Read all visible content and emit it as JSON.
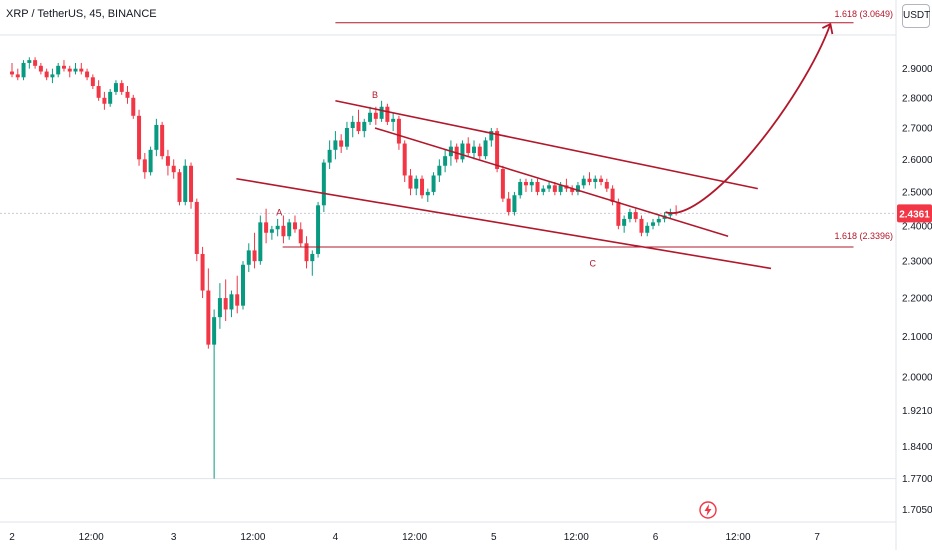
{
  "header": {
    "symbol_text": "XRP / TetherUS, 45, BINANCE",
    "currency": "USDT"
  },
  "price_tag": {
    "value": "2.4361",
    "color": "#f23645"
  },
  "colors": {
    "up": "#089981",
    "down": "#f23645",
    "drawing": "#b2182b"
  },
  "chart_data": {
    "type": "candlestick",
    "y_axis": {
      "ylim": [
        1.68,
        3.15
      ],
      "ticks": [
        "2.9000",
        "2.8000",
        "2.7000",
        "2.6000",
        "2.5000",
        "2.4000",
        "2.3000",
        "2.2000",
        "2.1000",
        "2.0000",
        "1.9210",
        "1.8400",
        "1.7700",
        "1.7050"
      ]
    },
    "x_axis": {
      "range": [
        0,
        280
      ],
      "ticks": [
        {
          "x": 0,
          "label": "2"
        },
        {
          "x": 24,
          "label": "12:00"
        },
        {
          "x": 49,
          "label": "3"
        },
        {
          "x": 73,
          "label": "12:00"
        },
        {
          "x": 98,
          "label": "4"
        },
        {
          "x": 122,
          "label": "12:00"
        },
        {
          "x": 146,
          "label": "5"
        },
        {
          "x": 171,
          "label": "12:00"
        },
        {
          "x": 195,
          "label": "6"
        },
        {
          "x": 220,
          "label": "12:00"
        },
        {
          "x": 244,
          "label": "7"
        }
      ]
    },
    "candles": [
      [
        2.89,
        2.92,
        2.87,
        2.88
      ],
      [
        2.88,
        2.9,
        2.86,
        2.87
      ],
      [
        2.87,
        2.93,
        2.86,
        2.92
      ],
      [
        2.92,
        2.94,
        2.9,
        2.93
      ],
      [
        2.93,
        2.94,
        2.9,
        2.91
      ],
      [
        2.91,
        2.92,
        2.88,
        2.89
      ],
      [
        2.89,
        2.9,
        2.86,
        2.87
      ],
      [
        2.87,
        2.9,
        2.85,
        2.88
      ],
      [
        2.88,
        2.92,
        2.87,
        2.91
      ],
      [
        2.91,
        2.93,
        2.89,
        2.9
      ],
      [
        2.9,
        2.91,
        2.87,
        2.89
      ],
      [
        2.89,
        2.92,
        2.88,
        2.9
      ],
      [
        2.9,
        2.92,
        2.88,
        2.89
      ],
      [
        2.89,
        2.9,
        2.86,
        2.87
      ],
      [
        2.87,
        2.88,
        2.83,
        2.84
      ],
      [
        2.84,
        2.86,
        2.79,
        2.8
      ],
      [
        2.8,
        2.82,
        2.76,
        2.78
      ],
      [
        2.78,
        2.83,
        2.77,
        2.82
      ],
      [
        2.82,
        2.86,
        2.81,
        2.85
      ],
      [
        2.85,
        2.86,
        2.81,
        2.82
      ],
      [
        2.82,
        2.84,
        2.78,
        2.8
      ],
      [
        2.8,
        2.81,
        2.73,
        2.74
      ],
      [
        2.74,
        2.76,
        2.58,
        2.6
      ],
      [
        2.6,
        2.62,
        2.54,
        2.56
      ],
      [
        2.56,
        2.64,
        2.55,
        2.63
      ],
      [
        2.63,
        2.73,
        2.61,
        2.71
      ],
      [
        2.71,
        2.72,
        2.6,
        2.61
      ],
      [
        2.61,
        2.63,
        2.55,
        2.58
      ],
      [
        2.58,
        2.6,
        2.54,
        2.56
      ],
      [
        2.56,
        2.57,
        2.46,
        2.47
      ],
      [
        2.47,
        2.6,
        2.46,
        2.58
      ],
      [
        2.58,
        2.59,
        2.45,
        2.47
      ],
      [
        2.47,
        2.48,
        2.3,
        2.32
      ],
      [
        2.32,
        2.34,
        2.2,
        2.22
      ],
      [
        2.22,
        2.28,
        2.07,
        2.08
      ],
      [
        2.08,
        2.17,
        1.77,
        2.15
      ],
      [
        2.15,
        2.24,
        2.12,
        2.2
      ],
      [
        2.2,
        2.25,
        2.14,
        2.17
      ],
      [
        2.17,
        2.22,
        2.15,
        2.21
      ],
      [
        2.21,
        2.26,
        2.16,
        2.18
      ],
      [
        2.18,
        2.3,
        2.17,
        2.29
      ],
      [
        2.29,
        2.35,
        2.27,
        2.33
      ],
      [
        2.33,
        2.38,
        2.28,
        2.3
      ],
      [
        2.3,
        2.43,
        2.29,
        2.41
      ],
      [
        2.41,
        2.45,
        2.35,
        2.38
      ],
      [
        2.38,
        2.4,
        2.36,
        2.39
      ],
      [
        2.39,
        2.42,
        2.37,
        2.4
      ],
      [
        2.4,
        2.43,
        2.35,
        2.37
      ],
      [
        2.37,
        2.42,
        2.36,
        2.41
      ],
      [
        2.41,
        2.43,
        2.38,
        2.39
      ],
      [
        2.39,
        2.41,
        2.34,
        2.35
      ],
      [
        2.35,
        2.37,
        2.28,
        2.3
      ],
      [
        2.3,
        2.33,
        2.26,
        2.32
      ],
      [
        2.32,
        2.47,
        2.31,
        2.46
      ],
      [
        2.46,
        2.6,
        2.44,
        2.59
      ],
      [
        2.59,
        2.66,
        2.57,
        2.63
      ],
      [
        2.63,
        2.69,
        2.6,
        2.66
      ],
      [
        2.66,
        2.68,
        2.62,
        2.64
      ],
      [
        2.64,
        2.72,
        2.63,
        2.7
      ],
      [
        2.7,
        2.74,
        2.67,
        2.72
      ],
      [
        2.72,
        2.76,
        2.68,
        2.69
      ],
      [
        2.69,
        2.73,
        2.67,
        2.72
      ],
      [
        2.72,
        2.77,
        2.71,
        2.75
      ],
      [
        2.75,
        2.77,
        2.71,
        2.73
      ],
      [
        2.73,
        2.79,
        2.72,
        2.77
      ],
      [
        2.77,
        2.78,
        2.71,
        2.72
      ],
      [
        2.72,
        2.75,
        2.69,
        2.73
      ],
      [
        2.73,
        2.74,
        2.63,
        2.65
      ],
      [
        2.65,
        2.66,
        2.53,
        2.55
      ],
      [
        2.55,
        2.57,
        2.49,
        2.51
      ],
      [
        2.51,
        2.55,
        2.49,
        2.54
      ],
      [
        2.54,
        2.55,
        2.48,
        2.49
      ],
      [
        2.49,
        2.51,
        2.47,
        2.5
      ],
      [
        2.5,
        2.56,
        2.49,
        2.55
      ],
      [
        2.55,
        2.6,
        2.53,
        2.58
      ],
      [
        2.58,
        2.63,
        2.56,
        2.61
      ],
      [
        2.61,
        2.66,
        2.58,
        2.64
      ],
      [
        2.64,
        2.65,
        2.59,
        2.6
      ],
      [
        2.6,
        2.66,
        2.59,
        2.65
      ],
      [
        2.65,
        2.67,
        2.61,
        2.62
      ],
      [
        2.62,
        2.66,
        2.6,
        2.64
      ],
      [
        2.64,
        2.65,
        2.6,
        2.61
      ],
      [
        2.61,
        2.67,
        2.6,
        2.66
      ],
      [
        2.66,
        2.7,
        2.64,
        2.69
      ],
      [
        2.69,
        2.7,
        2.56,
        2.57
      ],
      [
        2.57,
        2.58,
        2.47,
        2.48
      ],
      [
        2.48,
        2.5,
        2.43,
        2.44
      ],
      [
        2.44,
        2.5,
        2.43,
        2.49
      ],
      [
        2.49,
        2.54,
        2.48,
        2.53
      ],
      [
        2.53,
        2.54,
        2.5,
        2.52
      ],
      [
        2.52,
        2.54,
        2.5,
        2.53
      ],
      [
        2.53,
        2.54,
        2.49,
        2.5
      ],
      [
        2.5,
        2.52,
        2.49,
        2.51
      ],
      [
        2.51,
        2.53,
        2.5,
        2.52
      ],
      [
        2.52,
        2.53,
        2.49,
        2.5
      ],
      [
        2.5,
        2.53,
        2.49,
        2.52
      ],
      [
        2.52,
        2.54,
        2.5,
        2.51
      ],
      [
        2.51,
        2.52,
        2.49,
        2.5
      ],
      [
        2.5,
        2.53,
        2.49,
        2.52
      ],
      [
        2.52,
        2.55,
        2.51,
        2.54
      ],
      [
        2.54,
        2.56,
        2.52,
        2.53
      ],
      [
        2.53,
        2.55,
        2.51,
        2.54
      ],
      [
        2.54,
        2.55,
        2.52,
        2.53
      ],
      [
        2.53,
        2.54,
        2.5,
        2.51
      ],
      [
        2.51,
        2.52,
        2.46,
        2.47
      ],
      [
        2.47,
        2.48,
        2.39,
        2.4
      ],
      [
        2.4,
        2.43,
        2.38,
        2.42
      ],
      [
        2.42,
        2.45,
        2.41,
        2.44
      ],
      [
        2.44,
        2.45,
        2.41,
        2.42
      ],
      [
        2.42,
        2.43,
        2.37,
        2.38
      ],
      [
        2.38,
        2.41,
        2.37,
        2.4
      ],
      [
        2.4,
        2.42,
        2.39,
        2.41
      ],
      [
        2.41,
        2.43,
        2.4,
        2.42
      ],
      [
        2.42,
        2.44,
        2.41,
        2.43
      ],
      [
        2.43,
        2.45,
        2.42,
        2.44
      ],
      [
        2.44,
        2.46,
        2.43,
        2.4361
      ]
    ]
  },
  "annotations": {
    "labels": [
      {
        "text": "B",
        "x": 110,
        "y": 2.8
      },
      {
        "text": "A",
        "x": 81,
        "y": 2.43
      },
      {
        "text": "C",
        "x": 176,
        "y": 2.285
      },
      {
        "text": "1.618 (3.0649)",
        "x": 255,
        "y": 3.087
      },
      {
        "text": "1.618 (2.3396)",
        "x": 255,
        "y": 2.362
      }
    ],
    "fib_levels": [
      {
        "name": "1.618 (3.0649)",
        "value": 3.0649,
        "x": [
          98,
          255
        ]
      },
      {
        "name": "1.618 (2.3396)",
        "value": 2.3396,
        "x": [
          82,
          255
        ]
      }
    ],
    "trend_lines": [
      [
        [
          98,
          2.79
        ],
        [
          226,
          2.51
        ]
      ],
      [
        [
          68,
          2.54
        ],
        [
          230,
          2.28
        ]
      ],
      [
        [
          110,
          2.7
        ],
        [
          217,
          2.37
        ]
      ]
    ],
    "projection_arrow": [
      [
        198,
        2.44
      ],
      [
        210,
        2.4
      ],
      [
        240,
        2.8
      ],
      [
        248,
        3.06
      ]
    ]
  }
}
